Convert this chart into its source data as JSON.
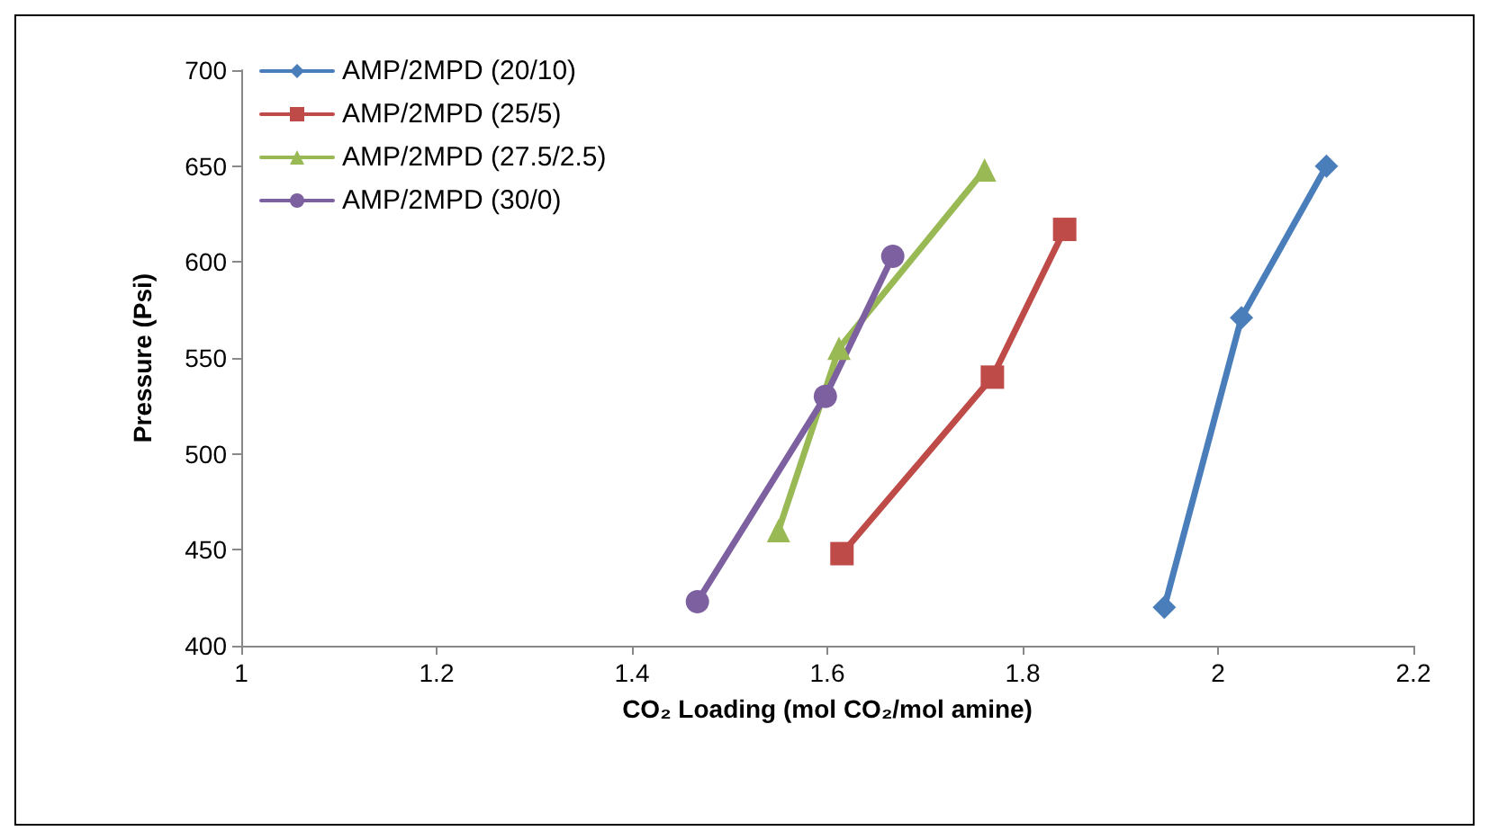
{
  "chart_data": {
    "type": "line",
    "xlabel": "CO₂ Loading (mol CO₂/mol amine)",
    "ylabel": "Pressure (Psi)",
    "xlim": [
      1,
      2.2
    ],
    "xticks": [
      1,
      1.2,
      1.4,
      1.6,
      1.8,
      2,
      2.2
    ],
    "ylim": [
      400,
      700
    ],
    "yticks": [
      400,
      450,
      500,
      550,
      600,
      650,
      700
    ],
    "grid": false,
    "legend": "top left",
    "line_style": "solid",
    "series": [
      {
        "name": "AMP/2MPD (20/10)",
        "color": "#4a7ebb",
        "marker": "diamond",
        "x": [
          1.945,
          2.024,
          2.111
        ],
        "values": [
          420,
          571,
          650
        ]
      },
      {
        "name": "AMP/2MPD (25/5)",
        "color": "#be4b48",
        "marker": "square",
        "x": [
          1.615,
          1.769,
          1.843
        ],
        "values": [
          448,
          540,
          617
        ]
      },
      {
        "name": "AMP/2MPD (27.5/2.5)",
        "color": "#98b954",
        "marker": "triangle",
        "x": [
          1.55,
          1.612,
          1.761
        ],
        "values": [
          460,
          555,
          648
        ]
      },
      {
        "name": "AMP/2MPD (30/0)",
        "color": "#7d60a0",
        "marker": "circle",
        "x": [
          1.467,
          1.598,
          1.667
        ],
        "values": [
          423,
          530,
          603
        ]
      }
    ]
  }
}
